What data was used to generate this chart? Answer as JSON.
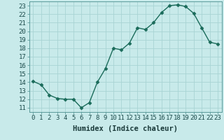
{
  "x": [
    0,
    1,
    2,
    3,
    4,
    5,
    6,
    7,
    8,
    9,
    10,
    11,
    12,
    13,
    14,
    15,
    16,
    17,
    18,
    19,
    20,
    21,
    22,
    23
  ],
  "y": [
    14.1,
    13.7,
    12.5,
    12.1,
    12.0,
    12.0,
    11.0,
    11.6,
    14.0,
    15.6,
    18.0,
    17.8,
    18.6,
    20.4,
    20.2,
    21.0,
    22.2,
    23.0,
    23.1,
    22.9,
    22.1,
    20.4,
    18.7,
    18.5
  ],
  "line_color": "#1a6b5a",
  "marker": "D",
  "markersize": 2.5,
  "linewidth": 1.0,
  "xlabel": "Humidex (Indice chaleur)",
  "xlim": [
    -0.5,
    23.5
  ],
  "ylim": [
    10.5,
    23.5
  ],
  "yticks": [
    11,
    12,
    13,
    14,
    15,
    16,
    17,
    18,
    19,
    20,
    21,
    22,
    23
  ],
  "xticks": [
    0,
    1,
    2,
    3,
    4,
    5,
    6,
    7,
    8,
    9,
    10,
    11,
    12,
    13,
    14,
    15,
    16,
    17,
    18,
    19,
    20,
    21,
    22,
    23
  ],
  "background_color": "#c8eaea",
  "grid_color": "#a8d4d4",
  "xlabel_fontsize": 7.5,
  "tick_fontsize": 6.5
}
